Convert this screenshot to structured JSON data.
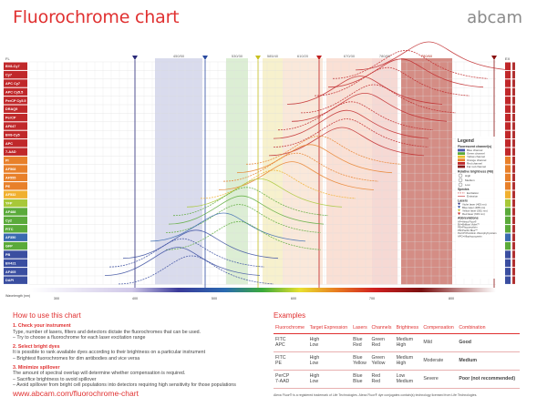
{
  "header": {
    "title": "Fluorochrome chart",
    "brand": "abcam"
  },
  "chart": {
    "left_header": "FL",
    "right_header": "EX",
    "axis_label": "Wavelength (nm)",
    "axis_ticks": [
      "300",
      "400",
      "500",
      "600",
      "700",
      "800"
    ],
    "filter_labels": [
      "450/50",
      "530/30",
      "585/40",
      "610/20",
      "670/30",
      "780/60",
      "780/60"
    ],
    "fluorochromes": [
      {
        "name": "BV8-Cy7",
        "color": "#c0282a"
      },
      {
        "name": "Cy7",
        "color": "#c0282a"
      },
      {
        "name": "APC Cy7",
        "color": "#c0282a"
      },
      {
        "name": "APC Cy5.5",
        "color": "#c0282a"
      },
      {
        "name": "PerCP Cy5.5",
        "color": "#c0282a"
      },
      {
        "name": "DRAQ5",
        "color": "#c0282a"
      },
      {
        "name": "PerCP",
        "color": "#c0282a"
      },
      {
        "name": "AF647",
        "color": "#c0282a"
      },
      {
        "name": "BV8-Cy5",
        "color": "#c0282a"
      },
      {
        "name": "APC",
        "color": "#c0282a"
      },
      {
        "name": "7-AAD",
        "color": "#c0282a"
      },
      {
        "name": "PI",
        "color": "#e8802a"
      },
      {
        "name": "AF568",
        "color": "#e8802a"
      },
      {
        "name": "AF555",
        "color": "#e8802a"
      },
      {
        "name": "PE",
        "color": "#e8802a"
      },
      {
        "name": "AF532",
        "color": "#f0b030"
      },
      {
        "name": "YFP",
        "color": "#a8c838"
      },
      {
        "name": "AF488",
        "color": "#5aaa3a"
      },
      {
        "name": "Cy2",
        "color": "#5aaa3a"
      },
      {
        "name": "FITC",
        "color": "#5aaa3a"
      },
      {
        "name": "AF350",
        "color": "#3a6ab0"
      },
      {
        "name": "GFP",
        "color": "#5aaa3a"
      },
      {
        "name": "PB",
        "color": "#3a4ea0"
      },
      {
        "name": "BV421",
        "color": "#3a4ea0"
      },
      {
        "name": "AF405",
        "color": "#3a4ea0"
      },
      {
        "name": "DAPI",
        "color": "#3a4ea0"
      }
    ]
  },
  "legend": {
    "title": "Legend",
    "channels_title": "Fluorescent channel(s)",
    "channels": [
      {
        "label": "Blue channel",
        "color": "#4a5ab0"
      },
      {
        "label": "Green channel",
        "color": "#5aaa3a"
      },
      {
        "label": "Yellow channel",
        "color": "#e8c030"
      },
      {
        "label": "Orange channel",
        "color": "#e8802a"
      },
      {
        "label": "Red channel",
        "color": "#c0282a"
      },
      {
        "label": "Far red channel",
        "color": "#8a1a1a"
      }
    ],
    "brightness_title": "Relative brightness (FB)",
    "brightness": [
      "High",
      "Medium",
      "Low"
    ],
    "spectra_title": "Spectra",
    "spectra": [
      "Excitation",
      "Emission"
    ],
    "lasers_title": "Lasers",
    "lasers": [
      "Violet laser (405 nm)",
      "Blue laser (488 nm)",
      "Yellow laser (561 nm)",
      "Red laser (633 nm)"
    ],
    "abbreviations_title": "Abbreviations",
    "abbreviations": [
      "AF=Alexa Fluor®",
      "BV=Brilliant Violet™",
      "PE=Phycoerythrin",
      "PB=Pacific Blue™",
      "PerCP=Peridinin chlorophyll protein",
      "APC=Allophycocyanin"
    ]
  },
  "howto": {
    "title": "How to use this chart",
    "steps": [
      {
        "title": "1. Check your instrument",
        "lines": [
          "Type, number of lasers, filters and detectors dictate the fluorochromes that can be used.",
          "– Try to choose a fluorochrome for each laser excitation range"
        ]
      },
      {
        "title": "2. Select bright dyes",
        "lines": [
          "It is possible to rank available dyes according to their brightness on a particular instrument",
          "– Brightest fluorochromes for dim antibodies and vice versa"
        ]
      },
      {
        "title": "3. Minimize spillover",
        "lines": [
          "The amount of spectral overlap will determine whether compensation is required.",
          "– Sacrifice brightness to avoid spillover",
          "– Avoid spillover from bright cell populations into detectors requiring high sensitivity for those populations"
        ]
      }
    ]
  },
  "examples": {
    "title": "Examples",
    "headers": [
      "Fluorochrome",
      "Target Expression",
      "Lasers",
      "Channels",
      "Brightness",
      "Compensation",
      "Combination"
    ],
    "rows": [
      {
        "fluor": [
          "FITC",
          "APC"
        ],
        "target": [
          "High",
          "Low"
        ],
        "lasers": [
          "Blue",
          "Red"
        ],
        "channels": [
          "Green",
          "Red"
        ],
        "brightness": [
          "Medium",
          "High"
        ],
        "compensation": "Mild",
        "combination": "Good",
        "rec": "good"
      },
      {
        "fluor": [
          "FITC",
          "PE"
        ],
        "target": [
          "High",
          "Low"
        ],
        "lasers": [
          "Blue",
          "Yellow"
        ],
        "channels": [
          "Green",
          "Yellow"
        ],
        "brightness": [
          "Medium",
          "High"
        ],
        "compensation": "Moderate",
        "combination": "Medium",
        "rec": "med"
      },
      {
        "fluor": [
          "PerCP",
          "7-AAD"
        ],
        "target": [
          "High",
          "Low"
        ],
        "lasers": [
          "Blue",
          "Blue"
        ],
        "channels": [
          "Red",
          "Red"
        ],
        "brightness": [
          "Low",
          "Medium"
        ],
        "compensation": "Severe",
        "combination": "Poor (not recommended)",
        "rec": "poor"
      }
    ]
  },
  "footer": {
    "url": "www.abcam.com/fluorochrome-chart",
    "credit": "Alexa Fluor® is a registered trademark of Life Technologies. Alexa Fluor® dye conjugates contain(s) technology licensed from Life Technologies."
  }
}
